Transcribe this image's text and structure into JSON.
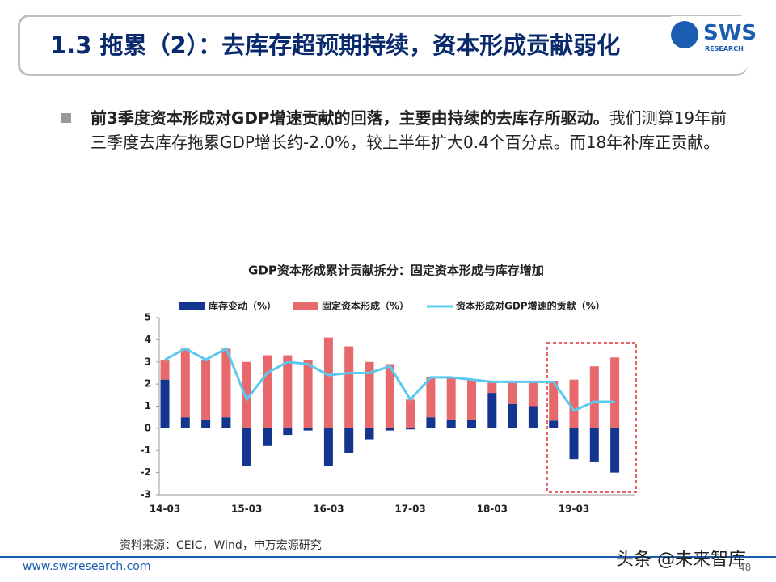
{
  "header": {
    "title": "1.3 拖累（2）：去库存超预期持续，资本形成贡献弱化",
    "logo": "SWS",
    "logo_sub": "RESEARCH"
  },
  "bullet": {
    "bold": "前3季度资本形成对GDP增速贡献的回落，主要由持续的去库存所驱动。",
    "text": "我们测算19年前三季度去库存拖累GDP增长约-2.0%，较上半年扩大0.4个百分点。而18年补库正贡献。"
  },
  "chart_data": {
    "type": "bar",
    "title": "GDP资本形成累计贡献拆分：固定资本形成与库存增加",
    "categories": [
      "14-03",
      null,
      null,
      null,
      "15-03",
      null,
      null,
      null,
      "16-03",
      null,
      null,
      null,
      "17-03",
      null,
      null,
      null,
      "18-03",
      null,
      null,
      null,
      "19-03",
      null,
      null
    ],
    "series": [
      {
        "name": "库存变动（%）",
        "color": "#14358f",
        "values": [
          2.2,
          0.5,
          0.4,
          0.5,
          -1.7,
          -0.8,
          -0.3,
          -0.1,
          -1.7,
          -1.1,
          -0.5,
          -0.1,
          -0.05,
          0.5,
          0.4,
          0.4,
          1.6,
          1.1,
          1.0,
          0.35,
          -1.4,
          -1.5,
          -2.0
        ]
      },
      {
        "name": "固定资本形成（%）",
        "color": "#e8696b",
        "values": [
          0.9,
          3.1,
          2.7,
          3.1,
          3.0,
          3.3,
          3.3,
          3.1,
          4.1,
          3.7,
          3.0,
          2.9,
          1.3,
          1.8,
          1.9,
          1.8,
          0.5,
          1.0,
          1.1,
          1.8,
          2.2,
          2.8,
          3.2
        ]
      },
      {
        "name": "资本形成对GDP增速的贡献（%）",
        "color": "#5bc8f0",
        "type": "line",
        "values": [
          3.1,
          3.6,
          3.1,
          3.6,
          1.3,
          2.5,
          3.0,
          2.9,
          2.4,
          2.5,
          2.5,
          2.8,
          1.3,
          2.3,
          2.3,
          2.2,
          2.1,
          2.1,
          2.1,
          2.1,
          0.8,
          1.2,
          1.2
        ]
      }
    ],
    "stacked": true,
    "ylim": [
      -3,
      5
    ],
    "yticks": [
      -3,
      -2,
      -1,
      0,
      1,
      2,
      3,
      4,
      5
    ],
    "grid": false,
    "legend": "top"
  },
  "source": "资料来源：CEIC，Wind，申万宏源研究",
  "footer": {
    "url": "www.swsresearch.com",
    "page": "48",
    "watermark": "头条 @未来智库"
  }
}
